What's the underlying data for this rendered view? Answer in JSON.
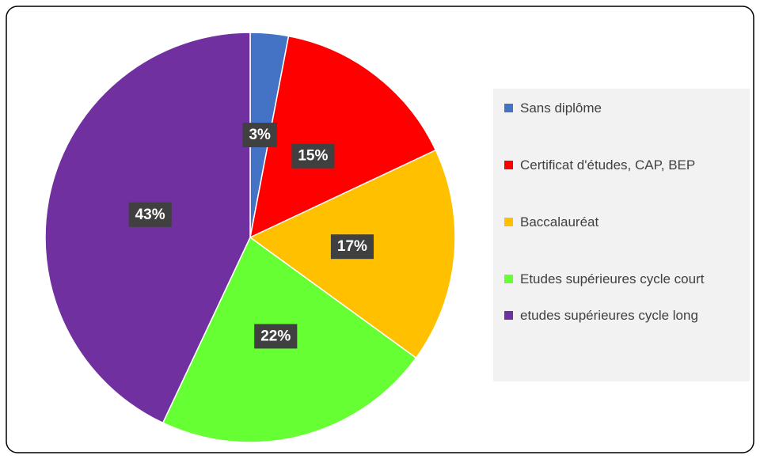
{
  "chart_data": {
    "type": "pie",
    "categories": [
      "Sans diplôme",
      "Certificat d'études, CAP, BEP",
      "Baccalauréat",
      "Etudes supérieures cycle court",
      "etudes supérieures cycle long"
    ],
    "values": [
      3,
      15,
      17,
      22,
      43
    ],
    "value_labels": [
      "3%",
      "15%",
      "17%",
      "22%",
      "43%"
    ],
    "colors": [
      "#4472c4",
      "#ff0000",
      "#ffc000",
      "#66ff33",
      "#7030a0"
    ],
    "legend": "right"
  }
}
